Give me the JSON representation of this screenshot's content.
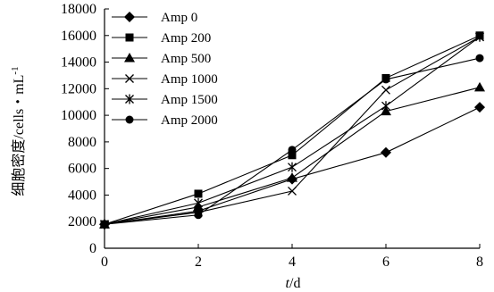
{
  "chart_data": {
    "type": "line",
    "title": "",
    "xlabel": {
      "var": "t",
      "unit": "/d"
    },
    "ylabel": "细胞密度/cells・mL",
    "ylabel_sup": "-1",
    "xlim": [
      0,
      8
    ],
    "ylim": [
      0,
      18000
    ],
    "x_ticks": [
      0,
      2,
      4,
      6,
      8
    ],
    "y_ticks": [
      0,
      2000,
      4000,
      6000,
      8000,
      10000,
      12000,
      14000,
      16000,
      18000
    ],
    "x": [
      0,
      2,
      4,
      6,
      8
    ],
    "grid": false,
    "legend_position": "top-left",
    "series": [
      {
        "name": "Amp 0",
        "marker": "diamond",
        "values": [
          1800,
          2800,
          5200,
          7200,
          10600
        ]
      },
      {
        "name": "Amp 200",
        "marker": "square",
        "values": [
          1800,
          4100,
          7000,
          12800,
          16000
        ]
      },
      {
        "name": "Amp 500",
        "marker": "triangle",
        "values": [
          1800,
          3100,
          5300,
          10300,
          12100
        ]
      },
      {
        "name": "Amp 1000",
        "marker": "x",
        "values": [
          1800,
          2700,
          4300,
          11900,
          15900
        ]
      },
      {
        "name": "Amp 1500",
        "marker": "star",
        "values": [
          1800,
          3400,
          6100,
          10700,
          15900
        ]
      },
      {
        "name": "Amp 2000",
        "marker": "circle",
        "values": [
          1800,
          2500,
          7400,
          12700,
          14300
        ]
      }
    ]
  }
}
